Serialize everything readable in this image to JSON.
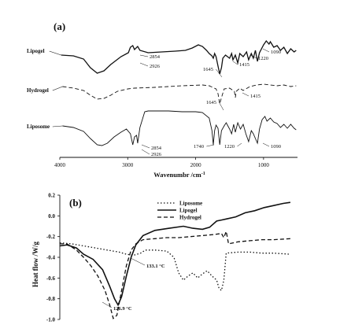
{
  "chart_data": [
    {
      "panel": "(a)",
      "type": "line",
      "xlabel": "Wavenumbr /cm",
      "xlabel_superscript": "-1",
      "xlim": [
        4000,
        500
      ],
      "x_reversed": true,
      "x_ticks": [
        4000,
        3000,
        2000,
        1000
      ],
      "x_tick_labels": [
        "4000",
        "3000",
        "2000",
        "1000"
      ],
      "series": [
        {
          "name": "Lipogel",
          "style": "solid",
          "offset": 0,
          "points": [
            [
              3980,
              8
            ],
            [
              3800,
              9
            ],
            [
              3650,
              13
            ],
            [
              3550,
              24
            ],
            [
              3450,
              31
            ],
            [
              3350,
              28
            ],
            [
              3250,
              20
            ],
            [
              3100,
              10
            ],
            [
              2990,
              5
            ],
            [
              2960,
              -2
            ],
            [
              2926,
              -4
            ],
            [
              2900,
              1
            ],
            [
              2854,
              -3
            ],
            [
              2820,
              2
            ],
            [
              2700,
              5
            ],
            [
              2500,
              4
            ],
            [
              2300,
              3
            ],
            [
              2150,
              2
            ],
            [
              2050,
              -1
            ],
            [
              1960,
              -5
            ],
            [
              1900,
              -3
            ],
            [
              1840,
              2
            ],
            [
              1800,
              6
            ],
            [
              1760,
              9
            ],
            [
              1740,
              12
            ],
            [
              1720,
              6
            ],
            [
              1700,
              10
            ],
            [
              1670,
              22
            ],
            [
              1645,
              32
            ],
            [
              1620,
              24
            ],
            [
              1600,
              12
            ],
            [
              1560,
              8
            ],
            [
              1500,
              12
            ],
            [
              1470,
              6
            ],
            [
              1450,
              14
            ],
            [
              1415,
              8
            ],
            [
              1380,
              18
            ],
            [
              1350,
              6
            ],
            [
              1300,
              10
            ],
            [
              1250,
              4
            ],
            [
              1220,
              14
            ],
            [
              1180,
              6
            ],
            [
              1150,
              12
            ],
            [
              1120,
              2
            ],
            [
              1090,
              16
            ],
            [
              1060,
              5
            ],
            [
              1000,
              -5
            ],
            [
              960,
              -10
            ],
            [
              920,
              -6
            ],
            [
              900,
              -9
            ],
            [
              850,
              -2
            ],
            [
              800,
              -4
            ],
            [
              750,
              2
            ],
            [
              700,
              -2
            ],
            [
              650,
              6
            ],
            [
              600,
              0
            ],
            [
              550,
              4
            ],
            [
              520,
              2
            ]
          ]
        },
        {
          "name": "Hydrogel",
          "style": "dashed",
          "offset": 0,
          "points": [
            [
              3960,
              0
            ],
            [
              3800,
              2
            ],
            [
              3650,
              5
            ],
            [
              3550,
              11
            ],
            [
              3450,
              16
            ],
            [
              3350,
              15
            ],
            [
              3250,
              11
            ],
            [
              3150,
              6
            ],
            [
              3000,
              3
            ],
            [
              2900,
              2
            ],
            [
              2600,
              1
            ],
            [
              2200,
              -1
            ],
            [
              1900,
              -2
            ],
            [
              1800,
              -1
            ],
            [
              1700,
              3
            ],
            [
              1670,
              9
            ],
            [
              1645,
              22
            ],
            [
              1620,
              14
            ],
            [
              1580,
              3
            ],
            [
              1500,
              2
            ],
            [
              1430,
              6
            ],
            [
              1415,
              14
            ],
            [
              1400,
              6
            ],
            [
              1350,
              2
            ],
            [
              1300,
              5
            ],
            [
              1200,
              0
            ],
            [
              1100,
              -2
            ],
            [
              1000,
              -3
            ],
            [
              900,
              -2
            ],
            [
              800,
              -1
            ],
            [
              700,
              -2
            ],
            [
              600,
              0
            ],
            [
              520,
              -1
            ]
          ]
        },
        {
          "name": "Liposome",
          "style": "solid",
          "offset": 0,
          "points": [
            [
              3960,
              0
            ],
            [
              3800,
              2
            ],
            [
              3650,
              7
            ],
            [
              3550,
              16
            ],
            [
              3450,
              24
            ],
            [
              3380,
              25
            ],
            [
              3300,
              22
            ],
            [
              3200,
              14
            ],
            [
              3100,
              8
            ],
            [
              3020,
              4
            ],
            [
              2960,
              10
            ],
            [
              2926,
              24
            ],
            [
              2900,
              14
            ],
            [
              2870,
              12
            ],
            [
              2854,
              22
            ],
            [
              2820,
              2
            ],
            [
              2750,
              -18
            ],
            [
              2700,
              -19
            ],
            [
              2400,
              -19
            ],
            [
              2200,
              -18
            ],
            [
              2000,
              -18
            ],
            [
              1900,
              -17
            ],
            [
              1800,
              -10
            ],
            [
              1760,
              6
            ],
            [
              1740,
              24
            ],
            [
              1720,
              6
            ],
            [
              1700,
              -1
            ],
            [
              1670,
              3
            ],
            [
              1645,
              24
            ],
            [
              1620,
              6
            ],
            [
              1580,
              0
            ],
            [
              1550,
              -4
            ],
            [
              1500,
              4
            ],
            [
              1470,
              10
            ],
            [
              1440,
              -2
            ],
            [
              1415,
              8
            ],
            [
              1380,
              -4
            ],
            [
              1340,
              4
            ],
            [
              1300,
              -2
            ],
            [
              1260,
              10
            ],
            [
              1220,
              20
            ],
            [
              1180,
              6
            ],
            [
              1150,
              10
            ],
            [
              1120,
              16
            ],
            [
              1090,
              22
            ],
            [
              1060,
              4
            ],
            [
              1020,
              -8
            ],
            [
              980,
              -12
            ],
            [
              950,
              -6
            ],
            [
              900,
              -10
            ],
            [
              850,
              -5
            ],
            [
              800,
              -3
            ],
            [
              750,
              2
            ],
            [
              700,
              -2
            ],
            [
              650,
              3
            ],
            [
              600,
              -2
            ],
            [
              550,
              3
            ],
            [
              520,
              5
            ]
          ]
        }
      ],
      "annotations": [
        {
          "series": "Lipogel",
          "text": "2854"
        },
        {
          "series": "Lipogel",
          "text": "2926"
        },
        {
          "series": "Lipogel",
          "text": "1645"
        },
        {
          "series": "Lipogel",
          "text": "1415"
        },
        {
          "series": "Lipogel",
          "text": "1220"
        },
        {
          "series": "Lipogel",
          "text": "1090"
        },
        {
          "series": "Hydrogel",
          "text": "1645"
        },
        {
          "series": "Hydrogel",
          "text": "1415"
        },
        {
          "series": "Liposome",
          "text": "2854"
        },
        {
          "series": "Liposome",
          "text": "2926"
        },
        {
          "series": "Liposome",
          "text": "1740"
        },
        {
          "series": "Liposome",
          "text": "1220"
        },
        {
          "series": "Liposome",
          "text": "1090"
        }
      ]
    },
    {
      "panel": "(b)",
      "type": "line",
      "ylabel": "Heat flow /W/g",
      "ylim": [
        -1.0,
        0.2
      ],
      "y_ticks": [
        0.2,
        0.0,
        -0.2,
        -0.4,
        -0.6,
        -0.8,
        -1.0
      ],
      "y_tick_labels": [
        "0.2",
        "0.0",
        "-0.2",
        "-0.4",
        "-0.6",
        "-0.8",
        "-1.0"
      ],
      "xlim": [
        0,
        100
      ],
      "legend": "top-center",
      "series": [
        {
          "name": "Liposome",
          "style": "dotted",
          "points": [
            [
              0,
              -0.26
            ],
            [
              5,
              -0.27
            ],
            [
              10,
              -0.29
            ],
            [
              15,
              -0.31
            ],
            [
              20,
              -0.33
            ],
            [
              25,
              -0.35
            ],
            [
              28,
              -0.37
            ],
            [
              31,
              -0.38
            ],
            [
              34,
              -0.36
            ],
            [
              36,
              -0.33
            ],
            [
              40,
              -0.33
            ],
            [
              45,
              -0.34
            ],
            [
              48,
              -0.4
            ],
            [
              50,
              -0.55
            ],
            [
              52,
              -0.62
            ],
            [
              54,
              -0.58
            ],
            [
              56,
              -0.55
            ],
            [
              58,
              -0.6
            ],
            [
              60,
              -0.56
            ],
            [
              62,
              -0.53
            ],
            [
              64,
              -0.58
            ],
            [
              66,
              -0.62
            ],
            [
              67,
              -0.7
            ],
            [
              68,
              -0.72
            ],
            [
              69,
              -0.62
            ],
            [
              70,
              -0.36
            ],
            [
              75,
              -0.35
            ],
            [
              80,
              -0.35
            ],
            [
              85,
              -0.36
            ],
            [
              90,
              -0.36
            ],
            [
              97,
              -0.37
            ]
          ]
        },
        {
          "name": "Lipogel",
          "style": "solid",
          "points": [
            [
              0,
              -0.29
            ],
            [
              3,
              -0.28
            ],
            [
              7,
              -0.31
            ],
            [
              10,
              -0.37
            ],
            [
              14,
              -0.42
            ],
            [
              18,
              -0.52
            ],
            [
              21,
              -0.68
            ],
            [
              23,
              -0.8
            ],
            [
              24.5,
              -0.86
            ],
            [
              26,
              -0.78
            ],
            [
              28,
              -0.58
            ],
            [
              30,
              -0.4
            ],
            [
              32,
              -0.28
            ],
            [
              35,
              -0.19
            ],
            [
              40,
              -0.14
            ],
            [
              46,
              -0.12
            ],
            [
              52,
              -0.1
            ],
            [
              56,
              -0.12
            ],
            [
              60,
              -0.13
            ],
            [
              63,
              -0.11
            ],
            [
              66,
              -0.05
            ],
            [
              68,
              -0.04
            ],
            [
              70,
              -0.03
            ],
            [
              74,
              -0.01
            ],
            [
              78,
              0.03
            ],
            [
              82,
              0.05
            ],
            [
              86,
              0.08
            ],
            [
              90,
              0.1
            ],
            [
              94,
              0.12
            ],
            [
              97,
              0.13
            ]
          ]
        },
        {
          "name": "Hydrogel",
          "style": "dashed",
          "points": [
            [
              0,
              -0.27
            ],
            [
              3,
              -0.27
            ],
            [
              7,
              -0.33
            ],
            [
              10,
              -0.4
            ],
            [
              13,
              -0.48
            ],
            [
              16,
              -0.58
            ],
            [
              19,
              -0.72
            ],
            [
              21,
              -0.86
            ],
            [
              22.5,
              -0.99
            ],
            [
              24,
              -0.96
            ],
            [
              26,
              -0.72
            ],
            [
              28,
              -0.48
            ],
            [
              30,
              -0.33
            ],
            [
              32,
              -0.27
            ],
            [
              35,
              -0.23
            ],
            [
              40,
              -0.22
            ],
            [
              45,
              -0.21
            ],
            [
              50,
              -0.21
            ],
            [
              55,
              -0.2
            ],
            [
              60,
              -0.19
            ],
            [
              65,
              -0.18
            ],
            [
              68,
              -0.17
            ],
            [
              69,
              -0.21
            ],
            [
              70,
              -0.15
            ],
            [
              71,
              -0.27
            ],
            [
              75,
              -0.25
            ],
            [
              80,
              -0.24
            ],
            [
              85,
              -0.23
            ],
            [
              90,
              -0.23
            ],
            [
              97,
              -0.22
            ]
          ]
        }
      ],
      "annotations": [
        {
          "series": "Liposome",
          "text": "133.1 °C"
        },
        {
          "series": "Lipogel",
          "text": "126.9 °C"
        }
      ]
    }
  ]
}
